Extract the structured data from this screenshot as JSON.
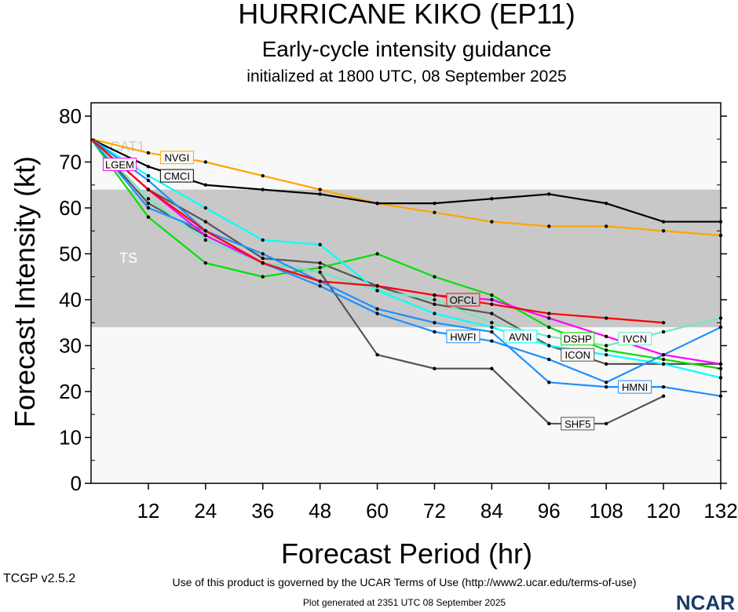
{
  "header": {
    "title": "HURRICANE KIKO (EP11)",
    "subtitle": "Early-cycle intensity guidance",
    "init": "initialized at 1800 UTC, 08 September 2025"
  },
  "footer": {
    "version": "TCGP v2.5.2",
    "terms": "Use of this product is governed by the UCAR Terms of Use (http://www2.ucar.edu/terms-of-use)",
    "generated": "Plot generated at 2351 UTC   08 September 2025",
    "logo": "NCAR"
  },
  "chart_data": {
    "type": "line",
    "xlabel": "Forecast Period (hr)",
    "ylabel": "Forecast Intensity (kt)",
    "xlim": [
      0,
      132
    ],
    "ylim": [
      0,
      80
    ],
    "xticks": [
      12,
      24,
      36,
      48,
      60,
      72,
      84,
      96,
      108,
      120,
      132
    ],
    "yticks": [
      0,
      10,
      20,
      30,
      40,
      50,
      60,
      70,
      80
    ],
    "bands": [
      {
        "label": "TS",
        "range": [
          34,
          64
        ],
        "color": "#c8c8c8"
      },
      {
        "label": "CAT1",
        "range": [
          64,
          80
        ],
        "color": "#f8f8f8"
      }
    ],
    "x": [
      0,
      12,
      24,
      36,
      48,
      60,
      72,
      84,
      96,
      108,
      120,
      132
    ],
    "series": [
      {
        "name": "NVGI",
        "color": "#ffa500",
        "values": [
          75,
          72,
          70,
          67,
          64,
          61,
          59,
          57,
          56,
          56,
          55,
          54
        ]
      },
      {
        "name": "CMCI",
        "color": "#000000",
        "values": [
          75,
          69,
          65,
          64,
          63,
          61,
          61,
          62,
          63,
          61,
          57,
          57
        ]
      },
      {
        "name": "SHF5",
        "color": "#555555",
        "values": [
          75,
          61,
          54,
          48,
          46,
          28,
          25,
          25,
          13,
          13,
          19,
          null
        ]
      },
      {
        "name": "ICON",
        "color": "#555555",
        "values": [
          75,
          64,
          57,
          49,
          48,
          43,
          39,
          37,
          30,
          26,
          26,
          26
        ]
      },
      {
        "name": "DSHP",
        "color": "#00e000",
        "values": [
          75,
          58,
          48,
          45,
          47,
          50,
          45,
          41,
          34,
          29,
          27,
          25
        ]
      },
      {
        "name": "IVCN",
        "color": "#70e8c0",
        "values": [
          75,
          62,
          53,
          48,
          46,
          42,
          40,
          35,
          32,
          30,
          33,
          36
        ]
      },
      {
        "name": "AVNI",
        "color": "#00ffff",
        "values": [
          75,
          67,
          60,
          53,
          52,
          42,
          37,
          34,
          30,
          28,
          26,
          23
        ]
      },
      {
        "name": "HMNI",
        "color": "#1e90ff",
        "values": [
          75,
          66,
          55,
          50,
          44,
          38,
          35,
          33,
          22,
          21,
          21,
          19
        ]
      },
      {
        "name": "HWFI",
        "color": "#1e90ff",
        "values": [
          75,
          60,
          55,
          48,
          43,
          37,
          33,
          31,
          27,
          22,
          28,
          34
        ]
      },
      {
        "name": "LGEM",
        "color": "#ff00ff",
        "values": [
          75,
          64,
          54,
          48,
          44,
          43,
          41,
          40,
          36,
          32,
          28,
          26
        ]
      },
      {
        "name": "OFCL",
        "color": "#ff0000",
        "values": [
          75,
          64,
          55,
          48,
          44,
          43,
          41,
          39,
          37,
          36,
          35,
          null
        ]
      }
    ]
  }
}
